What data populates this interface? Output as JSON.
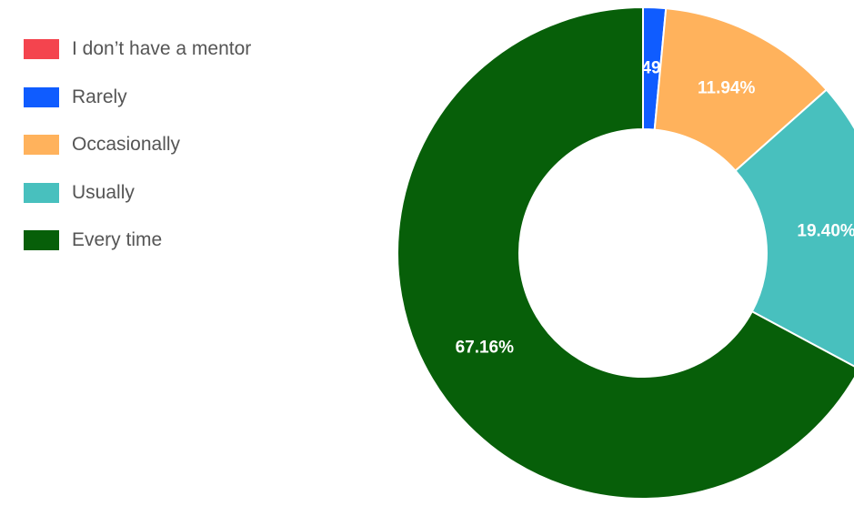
{
  "chart_data": {
    "type": "pie",
    "donut": true,
    "legend_position": "left",
    "slices": [
      {
        "label": "I don’t have a mentor",
        "value": 0.0,
        "value_label": "0.00%",
        "color": "#f4444e"
      },
      {
        "label": "Rarely",
        "value": 1.49,
        "value_label": "1.49%",
        "color": "#0f5cff"
      },
      {
        "label": "Occasionally",
        "value": 11.94,
        "value_label": "11.94%",
        "color": "#ffb25c"
      },
      {
        "label": "Usually",
        "value": 19.4,
        "value_label": "19.40%",
        "color": "#48c0be"
      },
      {
        "label": "Every time",
        "value": 67.16,
        "value_label": "67.16%",
        "color": "#075f09"
      }
    ]
  }
}
